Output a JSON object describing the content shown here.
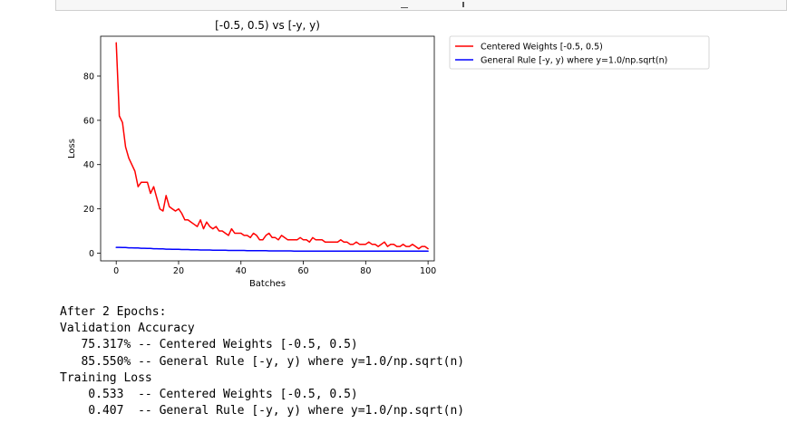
{
  "chart_data": {
    "type": "line",
    "title": "[-0.5, 0.5) vs [-y, y)",
    "xlabel": "Batches",
    "ylabel": "Loss",
    "xlim": [
      -5,
      102
    ],
    "ylim": [
      -3.5,
      98
    ],
    "xticks": [
      0,
      20,
      40,
      60,
      80,
      100
    ],
    "yticks": [
      0,
      20,
      40,
      60,
      80
    ],
    "legend_position": "outside-top-right",
    "grid": false,
    "series": [
      {
        "name": "Centered Weights [-0.5, 0.5)",
        "color": "#ff0000",
        "x": [
          0,
          1,
          2,
          3,
          4,
          5,
          6,
          7,
          8,
          9,
          10,
          11,
          12,
          13,
          14,
          15,
          16,
          17,
          18,
          19,
          20,
          21,
          22,
          23,
          24,
          25,
          26,
          27,
          28,
          29,
          30,
          31,
          32,
          33,
          34,
          35,
          36,
          37,
          38,
          39,
          40,
          41,
          42,
          43,
          44,
          45,
          46,
          47,
          48,
          49,
          50,
          51,
          52,
          53,
          54,
          55,
          56,
          57,
          58,
          59,
          60,
          61,
          62,
          63,
          64,
          65,
          66,
          67,
          68,
          69,
          70,
          71,
          72,
          73,
          74,
          75,
          76,
          77,
          78,
          79,
          80,
          81,
          82,
          83,
          84,
          85,
          86,
          87,
          88,
          89,
          90,
          91,
          92,
          93,
          94,
          95,
          96,
          97,
          98,
          99,
          100
        ],
        "y": [
          95,
          62,
          59,
          48,
          43,
          40,
          37,
          30,
          32,
          32,
          32,
          27,
          30,
          25,
          20,
          19,
          26,
          21,
          20,
          19,
          20,
          18,
          15,
          15,
          14,
          13,
          12,
          15,
          11,
          14,
          12,
          11,
          12,
          10,
          10,
          9,
          8,
          11,
          9,
          9,
          9,
          8,
          8,
          7,
          9,
          8,
          6,
          6,
          8,
          9,
          7,
          7,
          6,
          8,
          7,
          6,
          6,
          6,
          6,
          7,
          6,
          6,
          5,
          7,
          6,
          6,
          6,
          5,
          5,
          5,
          5,
          5,
          6,
          5,
          5,
          4,
          4,
          5,
          4,
          4,
          4,
          5,
          4,
          4,
          3,
          4,
          5,
          3,
          4,
          4,
          3,
          3,
          4,
          3,
          3,
          4,
          3,
          2,
          3,
          3,
          2
        ]
      },
      {
        "name": "General Rule [-y, y) where y=1.0/np.sqrt(n)",
        "color": "#0000ff",
        "x": [
          0,
          1,
          2,
          3,
          4,
          5,
          6,
          7,
          8,
          9,
          10,
          11,
          12,
          13,
          14,
          15,
          16,
          17,
          18,
          19,
          20,
          21,
          22,
          23,
          24,
          25,
          26,
          27,
          28,
          29,
          30,
          31,
          32,
          33,
          34,
          35,
          36,
          37,
          38,
          39,
          40,
          41,
          42,
          43,
          44,
          45,
          46,
          47,
          48,
          49,
          50,
          51,
          52,
          53,
          54,
          55,
          56,
          57,
          58,
          59,
          60,
          61,
          62,
          63,
          64,
          65,
          66,
          67,
          68,
          69,
          70,
          71,
          72,
          73,
          74,
          75,
          76,
          77,
          78,
          79,
          80,
          81,
          82,
          83,
          84,
          85,
          86,
          87,
          88,
          89,
          90,
          91,
          92,
          93,
          94,
          95,
          96,
          97,
          98,
          99,
          100
        ],
        "y": [
          2.6,
          2.6,
          2.5,
          2.5,
          2.4,
          2.4,
          2.3,
          2.3,
          2.2,
          2.2,
          2.1,
          2.1,
          2.0,
          2.0,
          1.9,
          1.9,
          1.8,
          1.8,
          1.7,
          1.7,
          1.7,
          1.6,
          1.6,
          1.6,
          1.5,
          1.5,
          1.5,
          1.4,
          1.4,
          1.4,
          1.4,
          1.3,
          1.3,
          1.3,
          1.3,
          1.3,
          1.2,
          1.2,
          1.2,
          1.2,
          1.2,
          1.2,
          1.1,
          1.1,
          1.1,
          1.1,
          1.1,
          1.1,
          1.1,
          1.0,
          1.0,
          1.0,
          1.0,
          1.0,
          1.0,
          1.0,
          1.0,
          0.9,
          0.9,
          0.9,
          0.9,
          0.9,
          0.9,
          0.9,
          0.9,
          0.9,
          0.9,
          0.9,
          0.9,
          0.9,
          0.9,
          0.9,
          0.9,
          0.9,
          0.9,
          0.9,
          0.9,
          0.9,
          0.9,
          0.9,
          0.9,
          0.9,
          0.9,
          0.9,
          0.9,
          0.9,
          0.9,
          0.9,
          0.9,
          0.9,
          0.9,
          0.9,
          0.9,
          0.9,
          0.9,
          0.9,
          0.9,
          0.9,
          0.9,
          0.9,
          0.9
        ]
      }
    ]
  },
  "output_lines": [
    "After 2 Epochs:",
    "Validation Accuracy",
    "   75.317% -- Centered Weights [-0.5, 0.5)",
    "   85.550% -- General Rule [-y, y) where y=1.0/np.sqrt(n)",
    "Training Loss",
    "    0.533  -- Centered Weights [-0.5, 0.5)",
    "    0.407  -- General Rule [-y, y) where y=1.0/np.sqrt(n)"
  ]
}
